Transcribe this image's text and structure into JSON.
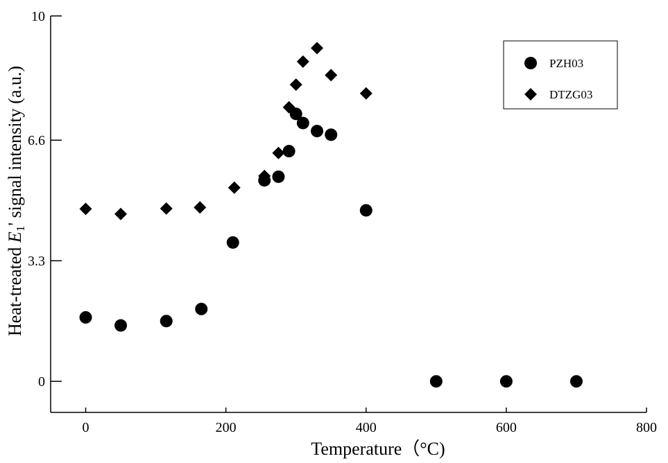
{
  "chart_data": {
    "type": "scatter",
    "xlabel": "Temperature（°C)",
    "ylabel_parts": {
      "prefix": "Heat-treated ",
      "symbol": "E",
      "subscript": "1",
      "suffix": "' signal intensity (a.u.)"
    },
    "xlim": [
      -50,
      800
    ],
    "ylim": [
      -0.85,
      10
    ],
    "x_ticks": [
      0,
      200,
      400,
      600,
      800
    ],
    "y_ticks": [
      0,
      3.3,
      6.6,
      10
    ],
    "x_tick_labels": [
      "0",
      "200",
      "400",
      "600",
      "800"
    ],
    "y_tick_labels": [
      "0",
      "3.3",
      "6.6",
      "10"
    ],
    "grid": false,
    "legend_position": "top-right",
    "series": [
      {
        "name": "PZH03",
        "marker": "circle",
        "color": "#000000",
        "x": [
          0,
          50,
          115,
          165,
          210,
          255,
          275,
          290,
          300,
          310,
          330,
          350,
          400,
          500,
          600,
          700
        ],
        "y": [
          1.75,
          1.53,
          1.65,
          1.98,
          3.8,
          5.5,
          5.6,
          6.3,
          7.32,
          7.07,
          6.85,
          6.75,
          4.68,
          0,
          0,
          0
        ]
      },
      {
        "name": "DTZG03",
        "marker": "diamond",
        "color": "#000000",
        "x": [
          0,
          50,
          115,
          163,
          212,
          255,
          275,
          290,
          300,
          310,
          330,
          350,
          400
        ],
        "y": [
          4.72,
          4.58,
          4.73,
          4.76,
          5.3,
          5.62,
          6.25,
          7.5,
          8.12,
          8.75,
          9.12,
          8.38,
          7.88
        ]
      }
    ]
  }
}
